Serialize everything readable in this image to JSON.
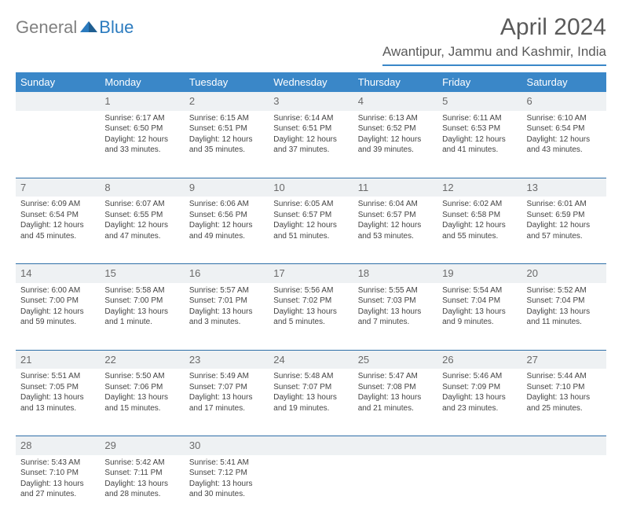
{
  "logo": {
    "text_gray": "General",
    "text_blue": "Blue"
  },
  "title": "April 2024",
  "location": "Awantipur, Jammu and Kashmir, India",
  "colors": {
    "header_bg": "#3a87c8",
    "header_text": "#ffffff",
    "daynum_bg": "#eef1f3",
    "daynum_text": "#6a6a6a",
    "body_text": "#444444",
    "rule": "#2f6fa8",
    "logo_gray": "#808080",
    "logo_blue": "#2b7bbf",
    "title_text": "#5a5a5a"
  },
  "weekdays": [
    "Sunday",
    "Monday",
    "Tuesday",
    "Wednesday",
    "Thursday",
    "Friday",
    "Saturday"
  ],
  "weeks": [
    {
      "nums": [
        "",
        "1",
        "2",
        "3",
        "4",
        "5",
        "6"
      ],
      "cells": [
        {},
        {
          "sunrise": "Sunrise: 6:17 AM",
          "sunset": "Sunset: 6:50 PM",
          "day1": "Daylight: 12 hours",
          "day2": "and 33 minutes."
        },
        {
          "sunrise": "Sunrise: 6:15 AM",
          "sunset": "Sunset: 6:51 PM",
          "day1": "Daylight: 12 hours",
          "day2": "and 35 minutes."
        },
        {
          "sunrise": "Sunrise: 6:14 AM",
          "sunset": "Sunset: 6:51 PM",
          "day1": "Daylight: 12 hours",
          "day2": "and 37 minutes."
        },
        {
          "sunrise": "Sunrise: 6:13 AM",
          "sunset": "Sunset: 6:52 PM",
          "day1": "Daylight: 12 hours",
          "day2": "and 39 minutes."
        },
        {
          "sunrise": "Sunrise: 6:11 AM",
          "sunset": "Sunset: 6:53 PM",
          "day1": "Daylight: 12 hours",
          "day2": "and 41 minutes."
        },
        {
          "sunrise": "Sunrise: 6:10 AM",
          "sunset": "Sunset: 6:54 PM",
          "day1": "Daylight: 12 hours",
          "day2": "and 43 minutes."
        }
      ]
    },
    {
      "nums": [
        "7",
        "8",
        "9",
        "10",
        "11",
        "12",
        "13"
      ],
      "cells": [
        {
          "sunrise": "Sunrise: 6:09 AM",
          "sunset": "Sunset: 6:54 PM",
          "day1": "Daylight: 12 hours",
          "day2": "and 45 minutes."
        },
        {
          "sunrise": "Sunrise: 6:07 AM",
          "sunset": "Sunset: 6:55 PM",
          "day1": "Daylight: 12 hours",
          "day2": "and 47 minutes."
        },
        {
          "sunrise": "Sunrise: 6:06 AM",
          "sunset": "Sunset: 6:56 PM",
          "day1": "Daylight: 12 hours",
          "day2": "and 49 minutes."
        },
        {
          "sunrise": "Sunrise: 6:05 AM",
          "sunset": "Sunset: 6:57 PM",
          "day1": "Daylight: 12 hours",
          "day2": "and 51 minutes."
        },
        {
          "sunrise": "Sunrise: 6:04 AM",
          "sunset": "Sunset: 6:57 PM",
          "day1": "Daylight: 12 hours",
          "day2": "and 53 minutes."
        },
        {
          "sunrise": "Sunrise: 6:02 AM",
          "sunset": "Sunset: 6:58 PM",
          "day1": "Daylight: 12 hours",
          "day2": "and 55 minutes."
        },
        {
          "sunrise": "Sunrise: 6:01 AM",
          "sunset": "Sunset: 6:59 PM",
          "day1": "Daylight: 12 hours",
          "day2": "and 57 minutes."
        }
      ]
    },
    {
      "nums": [
        "14",
        "15",
        "16",
        "17",
        "18",
        "19",
        "20"
      ],
      "cells": [
        {
          "sunrise": "Sunrise: 6:00 AM",
          "sunset": "Sunset: 7:00 PM",
          "day1": "Daylight: 12 hours",
          "day2": "and 59 minutes."
        },
        {
          "sunrise": "Sunrise: 5:58 AM",
          "sunset": "Sunset: 7:00 PM",
          "day1": "Daylight: 13 hours",
          "day2": "and 1 minute."
        },
        {
          "sunrise": "Sunrise: 5:57 AM",
          "sunset": "Sunset: 7:01 PM",
          "day1": "Daylight: 13 hours",
          "day2": "and 3 minutes."
        },
        {
          "sunrise": "Sunrise: 5:56 AM",
          "sunset": "Sunset: 7:02 PM",
          "day1": "Daylight: 13 hours",
          "day2": "and 5 minutes."
        },
        {
          "sunrise": "Sunrise: 5:55 AM",
          "sunset": "Sunset: 7:03 PM",
          "day1": "Daylight: 13 hours",
          "day2": "and 7 minutes."
        },
        {
          "sunrise": "Sunrise: 5:54 AM",
          "sunset": "Sunset: 7:04 PM",
          "day1": "Daylight: 13 hours",
          "day2": "and 9 minutes."
        },
        {
          "sunrise": "Sunrise: 5:52 AM",
          "sunset": "Sunset: 7:04 PM",
          "day1": "Daylight: 13 hours",
          "day2": "and 11 minutes."
        }
      ]
    },
    {
      "nums": [
        "21",
        "22",
        "23",
        "24",
        "25",
        "26",
        "27"
      ],
      "cells": [
        {
          "sunrise": "Sunrise: 5:51 AM",
          "sunset": "Sunset: 7:05 PM",
          "day1": "Daylight: 13 hours",
          "day2": "and 13 minutes."
        },
        {
          "sunrise": "Sunrise: 5:50 AM",
          "sunset": "Sunset: 7:06 PM",
          "day1": "Daylight: 13 hours",
          "day2": "and 15 minutes."
        },
        {
          "sunrise": "Sunrise: 5:49 AM",
          "sunset": "Sunset: 7:07 PM",
          "day1": "Daylight: 13 hours",
          "day2": "and 17 minutes."
        },
        {
          "sunrise": "Sunrise: 5:48 AM",
          "sunset": "Sunset: 7:07 PM",
          "day1": "Daylight: 13 hours",
          "day2": "and 19 minutes."
        },
        {
          "sunrise": "Sunrise: 5:47 AM",
          "sunset": "Sunset: 7:08 PM",
          "day1": "Daylight: 13 hours",
          "day2": "and 21 minutes."
        },
        {
          "sunrise": "Sunrise: 5:46 AM",
          "sunset": "Sunset: 7:09 PM",
          "day1": "Daylight: 13 hours",
          "day2": "and 23 minutes."
        },
        {
          "sunrise": "Sunrise: 5:44 AM",
          "sunset": "Sunset: 7:10 PM",
          "day1": "Daylight: 13 hours",
          "day2": "and 25 minutes."
        }
      ]
    },
    {
      "nums": [
        "28",
        "29",
        "30",
        "",
        "",
        "",
        ""
      ],
      "cells": [
        {
          "sunrise": "Sunrise: 5:43 AM",
          "sunset": "Sunset: 7:10 PM",
          "day1": "Daylight: 13 hours",
          "day2": "and 27 minutes."
        },
        {
          "sunrise": "Sunrise: 5:42 AM",
          "sunset": "Sunset: 7:11 PM",
          "day1": "Daylight: 13 hours",
          "day2": "and 28 minutes."
        },
        {
          "sunrise": "Sunrise: 5:41 AM",
          "sunset": "Sunset: 7:12 PM",
          "day1": "Daylight: 13 hours",
          "day2": "and 30 minutes."
        },
        {},
        {},
        {},
        {}
      ]
    }
  ]
}
